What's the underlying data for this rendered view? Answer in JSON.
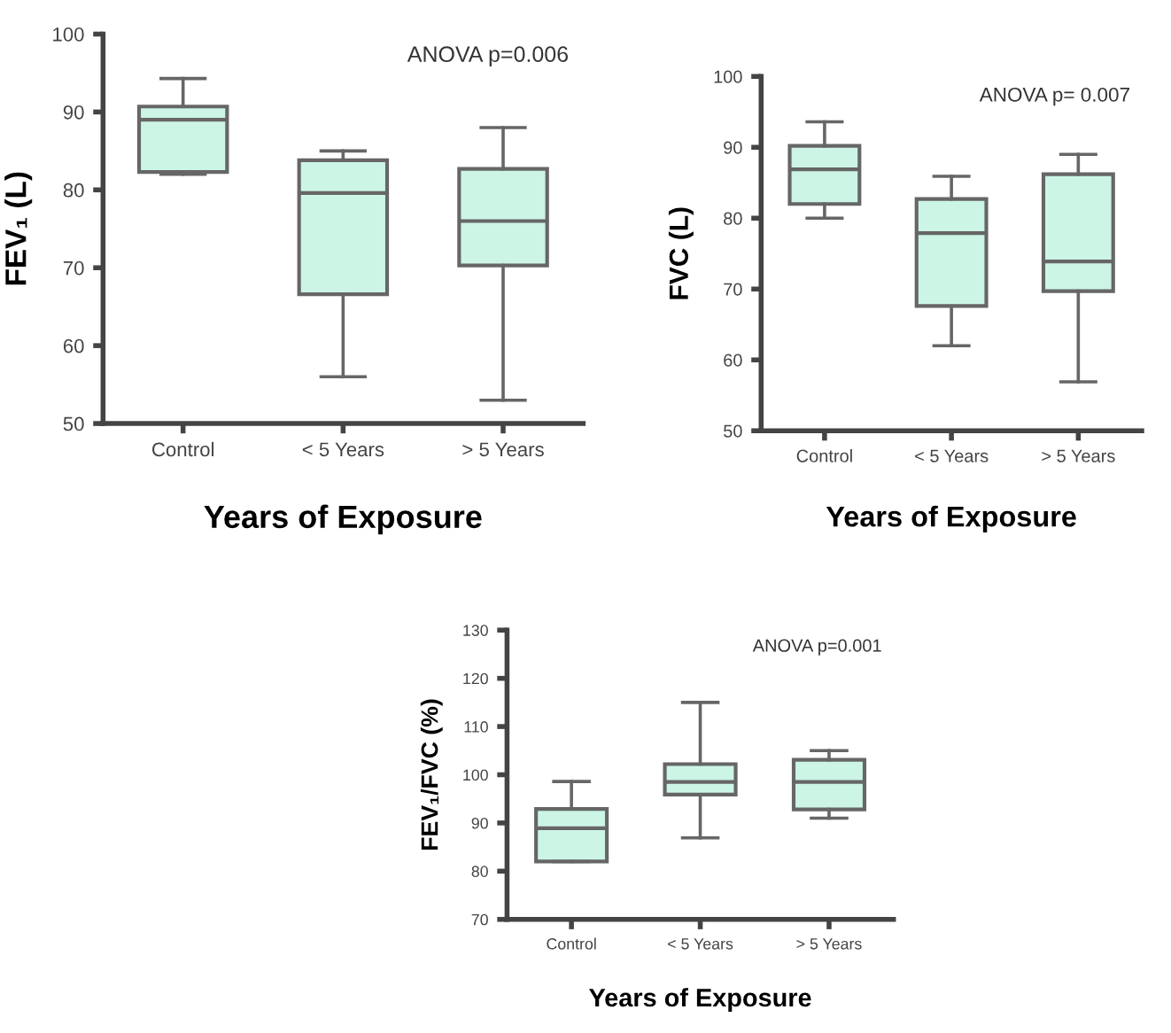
{
  "chart_data": [
    {
      "type": "box",
      "categories": [
        "Control",
        "< 5 Years",
        "> 5 Years"
      ],
      "xlabel": "Years of Exposure",
      "ylabel": "FEV₁ (L)",
      "ylim": [
        50,
        100
      ],
      "yticks": [
        50,
        60,
        70,
        80,
        90,
        100
      ],
      "color": "#ccf5e6",
      "annotations": [
        "ANOVA p=0.006"
      ],
      "grid": false,
      "legend": false,
      "boxes": [
        {
          "low": 82,
          "q1": 82.3,
          "median": 89,
          "q3": 90.7,
          "high": 94.3
        },
        {
          "low": 56,
          "q1": 66.6,
          "median": 79.6,
          "q3": 83.8,
          "high": 85
        },
        {
          "low": 53,
          "q1": 70.3,
          "median": 76,
          "q3": 82.7,
          "high": 88
        }
      ]
    },
    {
      "type": "box",
      "categories": [
        "Control",
        "< 5 Years",
        "> 5 Years"
      ],
      "xlabel": "Years of Exposure",
      "ylabel": "FVC (L)",
      "ylim": [
        50,
        100
      ],
      "yticks": [
        50,
        60,
        70,
        80,
        90,
        100
      ],
      "color": "#ccf5e6",
      "annotations": [
        "ANOVA p= 0.007"
      ],
      "grid": false,
      "legend": false,
      "boxes": [
        {
          "low": 80,
          "q1": 82,
          "median": 86.9,
          "q3": 90.2,
          "high": 93.6
        },
        {
          "low": 62,
          "q1": 67.6,
          "median": 77.9,
          "q3": 82.7,
          "high": 85.9
        },
        {
          "low": 56.9,
          "q1": 69.7,
          "median": 73.9,
          "q3": 86.2,
          "high": 89
        }
      ]
    },
    {
      "type": "box",
      "categories": [
        "Control",
        "< 5 Years",
        "> 5 Years"
      ],
      "xlabel": "Years of Exposure",
      "ylabel": "FEV₁/FVC (%)",
      "ylim": [
        70,
        130
      ],
      "yticks": [
        70,
        80,
        90,
        100,
        110,
        120,
        130
      ],
      "color": "#ccf5e6",
      "annotations": [
        "ANOVA p=0.001"
      ],
      "grid": false,
      "legend": false,
      "boxes": [
        {
          "low": 82,
          "q1": 82,
          "median": 88.9,
          "q3": 92.9,
          "high": 98.6
        },
        {
          "low": 86.9,
          "q1": 95.9,
          "median": 98.5,
          "q3": 102.2,
          "high": 115
        },
        {
          "low": 91,
          "q1": 92.8,
          "median": 98.5,
          "q3": 103.1,
          "high": 105
        }
      ]
    }
  ]
}
